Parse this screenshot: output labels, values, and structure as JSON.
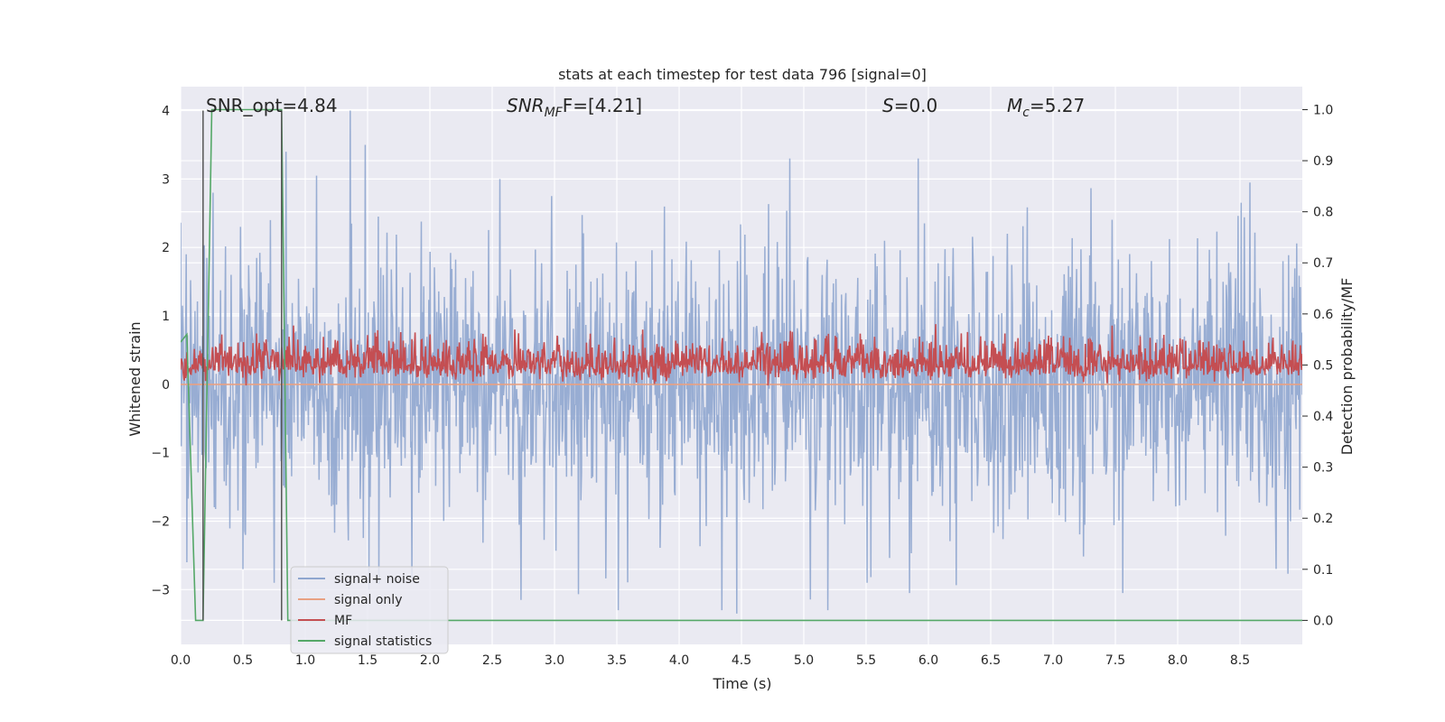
{
  "chart_data": {
    "type": "line",
    "title": "stats at each timestep for test data 796 [signal=0]",
    "xlabel": "Time (s)",
    "ylabel": "Whitened strain",
    "ylabel_right": "Detection probability/MF",
    "xlim": [
      0.0,
      9.0
    ],
    "ylim": [
      -3.8,
      4.35
    ],
    "ylim_right": [
      -0.047,
      1.045
    ],
    "x_ticks": [
      0.0,
      0.5,
      1.0,
      1.5,
      2.0,
      2.5,
      3.0,
      3.5,
      4.0,
      4.5,
      5.0,
      5.5,
      6.0,
      6.5,
      7.0,
      7.5,
      8.0,
      8.5
    ],
    "x_tick_labels": [
      "0.0",
      "0.5",
      "1.0",
      "1.5",
      "2.0",
      "2.5",
      "3.0",
      "3.5",
      "4.0",
      "4.5",
      "5.0",
      "5.5",
      "6.0",
      "6.5",
      "7.0",
      "7.5",
      "8.0",
      "8.5"
    ],
    "y_ticks": [
      4,
      3,
      2,
      1,
      0,
      -1,
      -2,
      -3
    ],
    "y_tick_labels": [
      "4",
      "3",
      "2",
      "1",
      "0",
      "−1",
      "−2",
      "−3"
    ],
    "y_ticks_right": [
      1.0,
      0.9,
      0.8,
      0.7,
      0.6,
      0.5,
      0.4,
      0.3,
      0.2,
      0.1,
      0.0
    ],
    "y_tick_labels_right": [
      "1.0",
      "0.9",
      "0.8",
      "0.7",
      "0.6",
      "0.5",
      "0.4",
      "0.3",
      "0.2",
      "0.1",
      "0.0"
    ],
    "grid": true,
    "legend_position": "lower-left",
    "annotations": {
      "snr_opt": "SNR_opt=4.84",
      "snr_mf": {
        "main": "SNR",
        "sub": "MF",
        "rest": "F=[4.21]"
      },
      "s_val": {
        "main": "S",
        "rest": "=0.0"
      },
      "mc_val": {
        "main": "M",
        "sub": "c",
        "rest": "=5.27"
      }
    },
    "vertical_lines_x": [
      0.18,
      0.81
    ],
    "series": [
      {
        "name": "signal+ noise",
        "color": "#8fa6cf",
        "axis": "left",
        "description_noise": {
          "samples": 1800,
          "typical_range": [
            -1.8,
            1.8
          ],
          "max": 4.0,
          "min": -3.3
        },
        "peaks": [
          {
            "x": 0.26,
            "y": 2.8
          },
          {
            "x": 0.48,
            "y": 2.3
          },
          {
            "x": 0.72,
            "y": 2.4
          },
          {
            "x": 1.09,
            "y": 3.05
          },
          {
            "x": 1.36,
            "y": 4.0
          },
          {
            "x": 1.48,
            "y": 3.5
          },
          {
            "x": 2.56,
            "y": 3.0
          },
          {
            "x": 4.89,
            "y": 3.3
          },
          {
            "x": 5.92,
            "y": 3.3
          },
          {
            "x": 8.58,
            "y": 2.95
          }
        ],
        "troughs": [
          {
            "x": 0.05,
            "y": -2.6
          },
          {
            "x": 0.5,
            "y": -2.7
          },
          {
            "x": 0.75,
            "y": -2.9
          },
          {
            "x": 1.51,
            "y": -3.0
          },
          {
            "x": 2.73,
            "y": -3.15
          },
          {
            "x": 4.34,
            "y": -3.3
          },
          {
            "x": 4.46,
            "y": -3.35
          },
          {
            "x": 5.51,
            "y": -2.9
          },
          {
            "x": 5.85,
            "y": -3.05
          },
          {
            "x": 7.56,
            "y": -3.05
          }
        ]
      },
      {
        "name": "signal only",
        "color": "#e8a183",
        "axis": "left",
        "values_constant": 0.0
      },
      {
        "name": "MF",
        "color": "#c44e52",
        "axis": "right",
        "description_noise": {
          "samples": 1800,
          "baseline": 0.5,
          "typical_range": [
            0.46,
            0.58
          ],
          "max": 0.6
        }
      },
      {
        "name": "signal statistics",
        "color": "#55a868",
        "axis": "right",
        "x": [
          0.0,
          0.05,
          0.12,
          0.18,
          0.25,
          0.81,
          0.86,
          9.0
        ],
        "y": [
          0.545,
          0.56,
          0.0,
          0.0,
          1.0,
          1.0,
          0.0,
          0.0
        ]
      }
    ]
  }
}
